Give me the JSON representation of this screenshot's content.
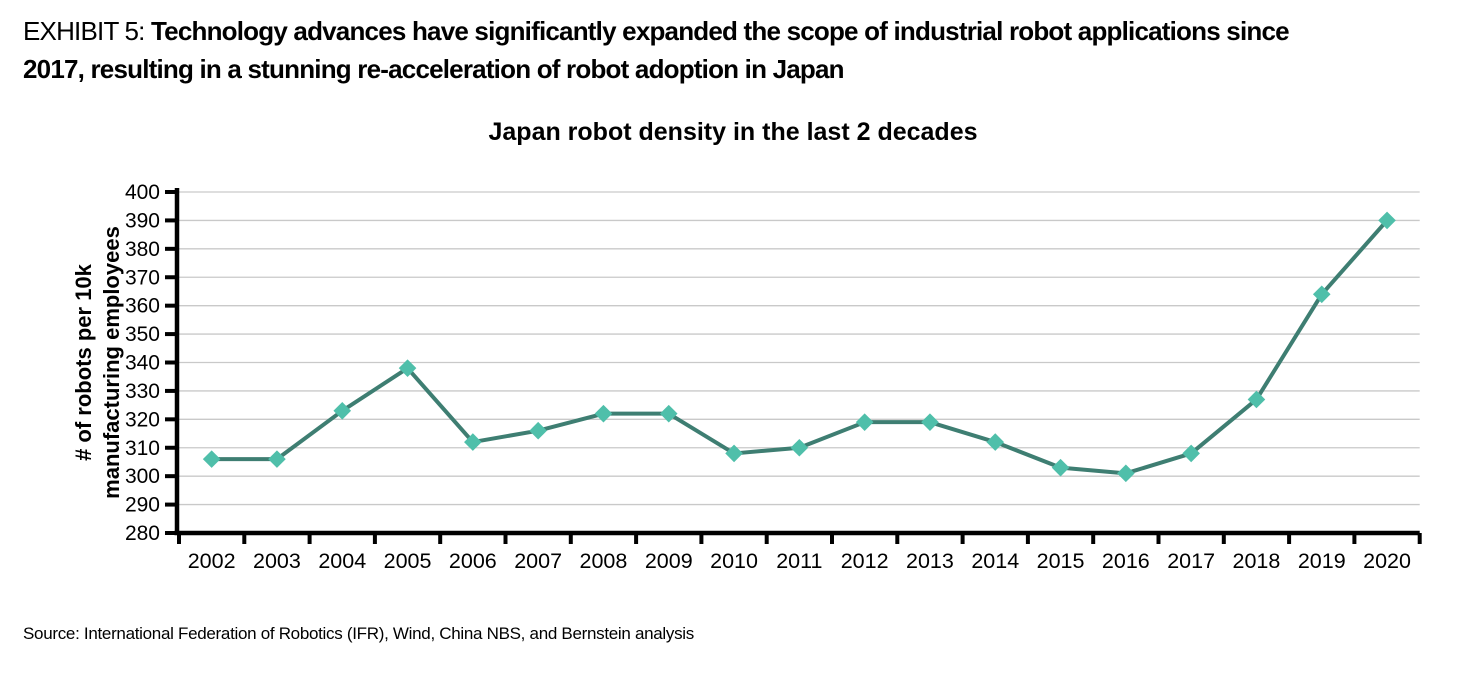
{
  "exhibit": {
    "label": "EXHIBIT 5:",
    "title_line1": "Technology advances have significantly expanded the scope of industrial robot applications since",
    "title_line2": "2017, resulting in a stunning re-acceleration of robot adoption in Japan"
  },
  "chart_data": {
    "type": "line",
    "title": "Japan robot density in the last 2 decades",
    "ylabel_lines": [
      "# of robots per 10k",
      "manufacturing employees"
    ],
    "xlabel": "",
    "categories": [
      "2002",
      "2003",
      "2004",
      "2005",
      "2006",
      "2007",
      "2008",
      "2009",
      "2010",
      "2011",
      "2012",
      "2013",
      "2014",
      "2015",
      "2016",
      "2017",
      "2018",
      "2019",
      "2020"
    ],
    "series": [
      {
        "name": "Japan robot density",
        "values": [
          306,
          306,
          323,
          338,
          312,
          316,
          322,
          322,
          308,
          310,
          319,
          319,
          312,
          303,
          301,
          308,
          327,
          364,
          390
        ]
      }
    ],
    "ylim": [
      280,
      400
    ],
    "ytick_step": 10,
    "grid": "horizontal",
    "legend": "none",
    "marker": "diamond",
    "colors": {
      "line": "#3E7E72",
      "marker": "#4FBFAA",
      "gridline": "#C9C9C9",
      "axis": "#000000",
      "text": "#000000"
    }
  },
  "source": {
    "text": "Source: International Federation of Robotics (IFR), Wind, China NBS, and Bernstein analysis"
  }
}
